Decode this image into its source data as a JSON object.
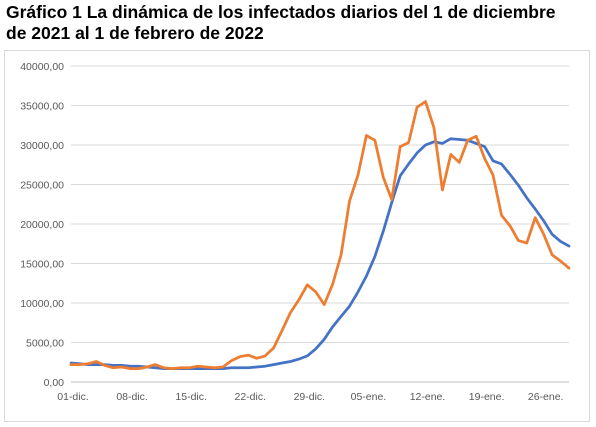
{
  "title_line1": "Gráfico 1 La dinámica de los infectados diarios del 1 de diciembre",
  "title_line2": "de 2021 al 1 de febrero de 2022",
  "chart_data": {
    "type": "line",
    "title": "Gráfico 1 La dinámica de los infectados diarios del 1 de diciembre de 2021 al 1 de febrero de 2022",
    "xlabel": "",
    "ylabel": "",
    "ylim": [
      0,
      40000
    ],
    "yticks": [
      "0,00",
      "5000,00",
      "10000,00",
      "15000,00",
      "20000,00",
      "25000,00",
      "30000,00",
      "35000,00",
      "40000,00"
    ],
    "xtick_labels": [
      "01-dic.",
      "08-dic.",
      "15-dic.",
      "22-dic.",
      "29-dic.",
      "05-ene.",
      "12-ene.",
      "19-ene.",
      "26-ene."
    ],
    "xtick_day_index": [
      0,
      7,
      14,
      21,
      28,
      35,
      42,
      49,
      56
    ],
    "grid": true,
    "legend": "none",
    "series": [
      {
        "color": "#4472c4",
        "values": [
          2400,
          2300,
          2200,
          2200,
          2200,
          2100,
          2100,
          2000,
          2000,
          1900,
          1800,
          1700,
          1700,
          1700,
          1700,
          1700,
          1700,
          1700,
          1700,
          1800,
          1800,
          1800,
          1900,
          2000,
          2200,
          2400,
          2600,
          2900,
          3300,
          4200,
          5400,
          7000,
          8300,
          9600,
          11400,
          13400,
          15900,
          19100,
          22700,
          26100,
          27600,
          29000,
          30000,
          30400,
          30200,
          30800,
          30700,
          30600,
          30200,
          29800,
          28000,
          27600,
          26300,
          24900,
          23300,
          21900,
          20400,
          18700,
          17800,
          17200
        ]
      },
      {
        "color": "#ed7d31",
        "values": [
          2200,
          2200,
          2300,
          2600,
          2100,
          1800,
          1900,
          1700,
          1700,
          1900,
          2200,
          1800,
          1700,
          1800,
          1800,
          2000,
          1900,
          1800,
          1900,
          2700,
          3200,
          3400,
          3000,
          3300,
          4300,
          6500,
          8800,
          10400,
          12300,
          11400,
          9800,
          12400,
          16100,
          22900,
          26200,
          31200,
          30600,
          25900,
          23100,
          29800,
          30300,
          34800,
          35500,
          32200,
          24300,
          28800,
          27800,
          30600,
          31100,
          28300,
          26200,
          21100,
          19800,
          17900,
          17600,
          20800,
          18700,
          16100,
          15300,
          14400
        ]
      }
    ]
  }
}
